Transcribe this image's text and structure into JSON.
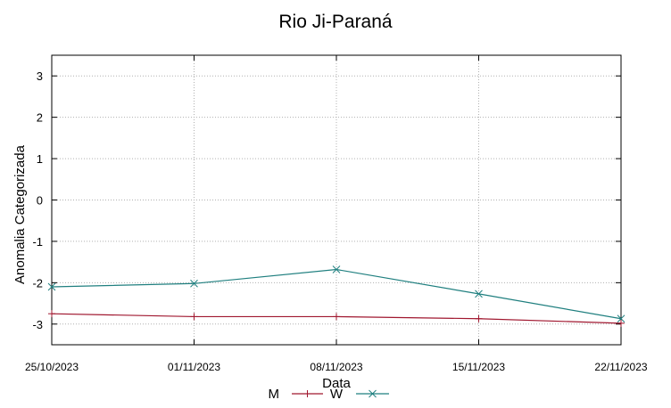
{
  "chart_data": {
    "type": "line",
    "title": "Rio Ji-Paraná",
    "xlabel": "Data",
    "ylabel": "Anomalia Categorizada",
    "x": [
      "25/10/2023",
      "01/11/2023",
      "08/11/2023",
      "15/11/2023",
      "22/11/2023"
    ],
    "ylim": [
      -3.5,
      3.5
    ],
    "yticks": [
      3,
      2,
      1,
      0,
      -1,
      -2,
      -3
    ],
    "grid": true,
    "legend_position": "bottom-center",
    "series": [
      {
        "name": "M",
        "color": "#a0172f",
        "marker": "plus",
        "values": [
          -2.75,
          -2.82,
          -2.82,
          -2.87,
          -2.98
        ]
      },
      {
        "name": "W",
        "color": "#1f7f7f",
        "marker": "x",
        "values": [
          -2.1,
          -2.02,
          -1.68,
          -2.27,
          -2.87
        ]
      }
    ]
  }
}
